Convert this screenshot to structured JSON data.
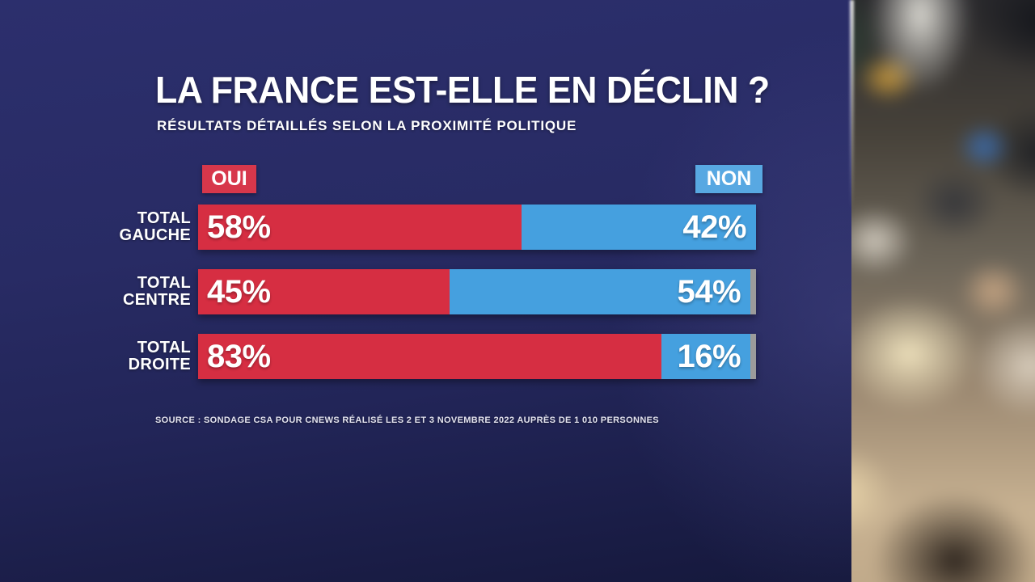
{
  "header": {
    "title": "LA FRANCE EST-ELLE EN DÉCLIN ?",
    "subtitle": "RÉSULTATS DÉTAILLÉS SELON LA PROXIMITÉ POLITIQUE"
  },
  "legend": {
    "oui": "OUI",
    "non": "NON"
  },
  "source": "SOURCE : SONDAGE CSA POUR CNEWS RÉALISÉ LES 2 ET 3 NOVEMBRE 2022 AUPRÈS DE 1 010 PERSONNES",
  "colors": {
    "oui_bar": "#d62e42",
    "non_bar": "#45a0df",
    "rest": "#9b9b9b",
    "oui_badge": "#d7374b",
    "non_badge": "#58a8e2",
    "background_top": "#2c2f6d",
    "background_bottom": "#141739"
  },
  "chart_data": {
    "type": "bar",
    "orientation": "horizontal-stacked",
    "title": "LA FRANCE EST-ELLE EN DÉCLIN ?",
    "subtitle": "RÉSULTATS DÉTAILLÉS SELON LA PROXIMITÉ POLITIQUE",
    "categories": [
      "TOTAL GAUCHE",
      "TOTAL CENTRE",
      "TOTAL DROITE"
    ],
    "series": [
      {
        "name": "OUI",
        "values": [
          58,
          45,
          83
        ],
        "color": "#d62e42"
      },
      {
        "name": "NON",
        "values": [
          42,
          54,
          16
        ],
        "color": "#45a0df"
      }
    ],
    "value_suffix": "%",
    "scale_max": 100,
    "legend_position": "above-bars",
    "note": "remainder to 100% shown as gray sliver"
  }
}
